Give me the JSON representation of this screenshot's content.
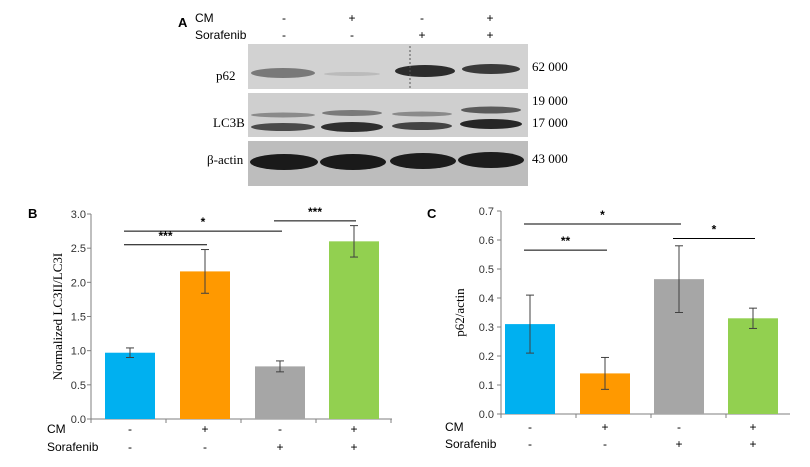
{
  "panel_a": {
    "label": "A",
    "conditions": [
      {
        "name": "CM",
        "values": [
          "-",
          "+",
          "-",
          "+"
        ]
      },
      {
        "name": "Sorafenib",
        "values": [
          "-",
          "-",
          "+",
          "+"
        ]
      }
    ],
    "blots": [
      {
        "label": "p62",
        "mw": [
          "62 000"
        ]
      },
      {
        "label": "LC3B",
        "mw": [
          "19 000",
          "17 000"
        ]
      },
      {
        "label": "β-actin",
        "mw": [
          "43 000"
        ]
      }
    ]
  },
  "chart_data": [
    {
      "panel": "B",
      "type": "bar",
      "ylabel": "Normalized LC3II/LC3I",
      "ylim": [
        0,
        3.0
      ],
      "yticks": [
        "0.0",
        "0.5",
        "1.0",
        "1.5",
        "2.0",
        "2.5",
        "3.0"
      ],
      "values": [
        0.97,
        2.16,
        0.77,
        2.6
      ],
      "errors": [
        0.07,
        0.32,
        0.08,
        0.23
      ],
      "colors": [
        "#00b0f0",
        "#ff9900",
        "#a6a6a6",
        "#92d050"
      ],
      "conditions": [
        {
          "name": "CM",
          "values": [
            "-",
            "+",
            "-",
            "+"
          ]
        },
        {
          "name": "Sorafenib",
          "values": [
            "-",
            "-",
            "+",
            "+"
          ]
        }
      ],
      "significance": [
        {
          "from": 0,
          "to": 1,
          "label": "***",
          "y": 2.55
        },
        {
          "from": 0,
          "to": 2,
          "label": "*",
          "y": 2.75
        },
        {
          "from": 2,
          "to": 3,
          "label": "***",
          "y": 2.9
        }
      ]
    },
    {
      "panel": "C",
      "type": "bar",
      "ylabel": "p62/actin",
      "ylim": [
        0,
        0.7
      ],
      "yticks": [
        "0.0",
        "0.1",
        "0.2",
        "0.3",
        "0.4",
        "0.5",
        "0.6",
        "0.7"
      ],
      "values": [
        0.31,
        0.14,
        0.465,
        0.33
      ],
      "errors": [
        0.1,
        0.055,
        0.115,
        0.035
      ],
      "colors": [
        "#00b0f0",
        "#ff9900",
        "#a6a6a6",
        "#92d050"
      ],
      "conditions": [
        {
          "name": "CM",
          "values": [
            "-",
            "+",
            "-",
            "+"
          ]
        },
        {
          "name": "Sorafenib",
          "values": [
            "-",
            "-",
            "+",
            "+"
          ]
        }
      ],
      "significance": [
        {
          "from": 0,
          "to": 1,
          "label": "**",
          "y": 0.565
        },
        {
          "from": 0,
          "to": 2,
          "label": "*",
          "y": 0.655
        },
        {
          "from": 2,
          "to": 3,
          "label": "*",
          "y": 0.605
        }
      ]
    }
  ]
}
